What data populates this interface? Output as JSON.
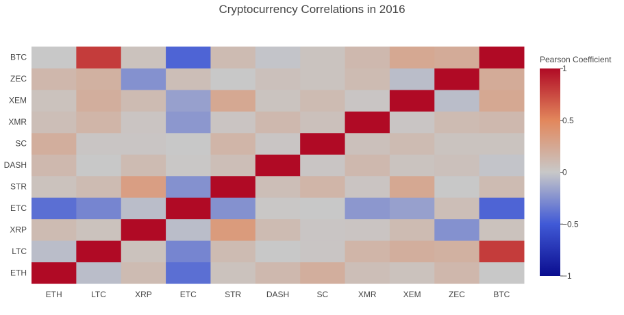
{
  "chart_data": {
    "type": "heatmap",
    "title": "Cryptocurrency Correlations in 2016",
    "x_categories": [
      "ETH",
      "LTC",
      "XRP",
      "ETC",
      "STR",
      "DASH",
      "SC",
      "XMR",
      "XEM",
      "ZEC",
      "BTC"
    ],
    "y_categories": [
      "ETH",
      "LTC",
      "XRP",
      "ETC",
      "STR",
      "DASH",
      "SC",
      "XMR",
      "XEM",
      "ZEC",
      "BTC"
    ],
    "z_rows_bottom_to_top": [
      [
        1.0,
        -0.05,
        0.1,
        -0.4,
        0.05,
        0.12,
        0.2,
        0.08,
        0.05,
        0.13,
        0.0
      ],
      [
        -0.05,
        1.0,
        0.05,
        -0.3,
        0.1,
        0.0,
        0.02,
        0.15,
        0.2,
        0.18,
        0.8
      ],
      [
        0.1,
        0.05,
        1.0,
        -0.05,
        0.35,
        0.1,
        0.02,
        0.03,
        0.1,
        -0.25,
        0.05
      ],
      [
        -0.4,
        -0.3,
        -0.05,
        1.0,
        -0.25,
        0.01,
        0.0,
        -0.22,
        -0.18,
        0.08,
        -0.45
      ],
      [
        0.05,
        0.1,
        0.32,
        -0.25,
        1.0,
        0.08,
        0.15,
        0.03,
        0.25,
        0.0,
        0.1
      ],
      [
        0.12,
        0.0,
        0.1,
        0.01,
        0.08,
        1.0,
        0.02,
        0.12,
        0.04,
        0.06,
        -0.02
      ],
      [
        0.2,
        0.02,
        0.02,
        0.0,
        0.15,
        0.02,
        1.0,
        0.06,
        0.1,
        0.04,
        0.04
      ],
      [
        0.08,
        0.15,
        0.03,
        -0.22,
        0.03,
        0.12,
        0.06,
        1.0,
        0.02,
        0.1,
        0.12
      ],
      [
        0.05,
        0.2,
        0.1,
        -0.18,
        0.25,
        0.04,
        0.1,
        0.02,
        1.0,
        -0.05,
        0.25
      ],
      [
        0.13,
        0.18,
        -0.25,
        0.08,
        0.0,
        0.06,
        0.04,
        0.1,
        -0.05,
        1.0,
        0.22
      ],
      [
        0.0,
        0.8,
        0.05,
        -0.45,
        0.1,
        -0.02,
        0.04,
        0.12,
        0.25,
        0.22,
        1.0
      ]
    ],
    "zmin": -1,
    "zmax": 1,
    "colorscale": [
      [
        0.0,
        "#0a0d8f"
      ],
      [
        0.25,
        "#4059d6"
      ],
      [
        0.5,
        "#c8c8c8"
      ],
      [
        0.75,
        "#e2875c"
      ],
      [
        1.0,
        "#b00a25"
      ]
    ],
    "colorbar": {
      "title": "Pearson Coefficient",
      "tickvals": [
        1,
        0.5,
        0,
        -0.5,
        -1
      ],
      "ticktext": [
        "1",
        "0.5",
        "0",
        "−0.5",
        "−1"
      ]
    }
  }
}
